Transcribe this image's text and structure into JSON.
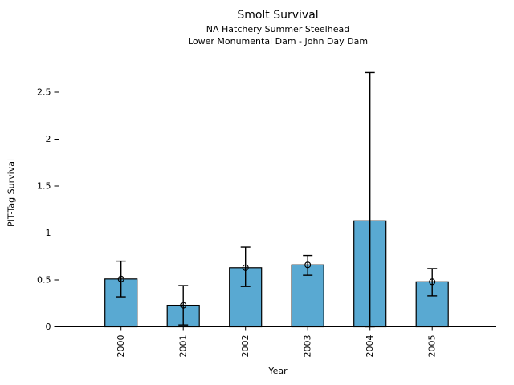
{
  "title": "Smolt Survival",
  "subtitle_line1": "NA Hatchery Summer Steelhead",
  "subtitle_line2": "Lower Monumental Dam - John Day Dam",
  "chart_data": {
    "type": "bar",
    "title": "Smolt Survival",
    "subtitle": [
      "NA Hatchery Summer Steelhead",
      "Lower Monumental Dam - John Day Dam"
    ],
    "xlabel": "Year",
    "ylabel": "PIT-Tag Survival",
    "categories": [
      "2000",
      "2001",
      "2002",
      "2003",
      "2004",
      "2005"
    ],
    "values": [
      0.51,
      0.23,
      0.63,
      0.66,
      1.13,
      0.48
    ],
    "error_low": [
      0.32,
      0.02,
      0.43,
      0.55,
      0.0,
      0.33
    ],
    "error_high": [
      0.7,
      0.44,
      0.85,
      0.76,
      2.71,
      0.62
    ],
    "point_marker_shown": [
      true,
      true,
      true,
      true,
      false,
      true
    ],
    "yticks": [
      0,
      0.5,
      1,
      1.5,
      2,
      2.5
    ],
    "ytick_labels": [
      "0",
      "0.5",
      "1",
      "1.5",
      "2",
      "2.5"
    ],
    "ylim": [
      0,
      2.85
    ],
    "grid": false,
    "legend": null,
    "bar_fill_color": "#59A9D2",
    "bar_edge_color": "#000000",
    "errorbar_color": "#000000",
    "axis_color": "#000000"
  }
}
